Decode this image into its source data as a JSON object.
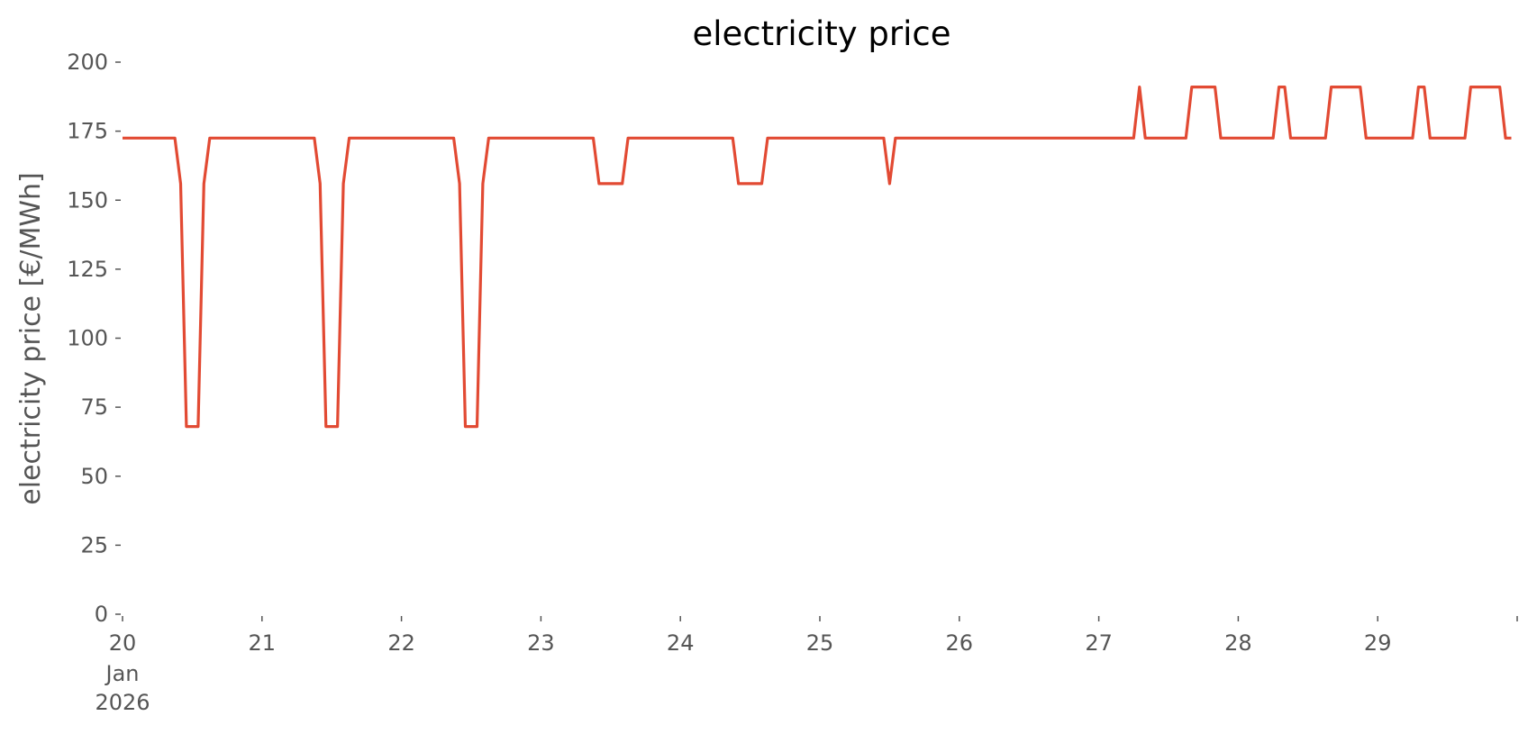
{
  "chart_data": {
    "type": "line",
    "title": "electricity price",
    "xlabel": "",
    "ylabel": "electricity price [€/MWh]",
    "ylim": [
      0,
      200
    ],
    "xlim": [
      "2026-01-20 00:00",
      "2026-01-29 23:00"
    ],
    "grid": false,
    "legend": "none",
    "y_ticks": [
      0,
      25,
      50,
      75,
      100,
      125,
      150,
      175,
      200
    ],
    "y_tick_labels": [
      "0",
      "25",
      "50",
      "75",
      "100",
      "125",
      "150",
      "175",
      "200"
    ],
    "x_ticks": [
      "2026-01-20",
      "2026-01-21",
      "2026-01-22",
      "2026-01-23",
      "2026-01-24",
      "2026-01-25",
      "2026-01-26",
      "2026-01-27",
      "2026-01-28",
      "2026-01-29",
      "2026-01-30"
    ],
    "x_tick_labels": [
      "20",
      "21",
      "22",
      "23",
      "24",
      "25",
      "26",
      "27",
      "28",
      "29",
      ""
    ],
    "x_tick_sublabel": [
      "Jan",
      "2026"
    ],
    "series": [
      {
        "color": "#E24A33",
        "x": [
          "2026-01-20 00:00",
          "2026-01-20 09:00",
          "2026-01-20 10:00",
          "2026-01-20 11:00",
          "2026-01-20 13:00",
          "2026-01-20 14:00",
          "2026-01-20 15:00",
          "2026-01-21 09:00",
          "2026-01-21 10:00",
          "2026-01-21 11:00",
          "2026-01-21 13:00",
          "2026-01-21 14:00",
          "2026-01-21 15:00",
          "2026-01-22 09:00",
          "2026-01-22 10:00",
          "2026-01-22 11:00",
          "2026-01-22 13:00",
          "2026-01-22 14:00",
          "2026-01-22 15:00",
          "2026-01-23 09:00",
          "2026-01-23 10:00",
          "2026-01-23 14:00",
          "2026-01-23 15:00",
          "2026-01-24 09:00",
          "2026-01-24 10:00",
          "2026-01-24 14:00",
          "2026-01-24 15:00",
          "2026-01-25 11:00",
          "2026-01-25 12:00",
          "2026-01-25 13:00",
          "2026-01-27 06:00",
          "2026-01-27 07:00",
          "2026-01-27 08:00",
          "2026-01-27 15:00",
          "2026-01-27 16:00",
          "2026-01-27 20:00",
          "2026-01-27 21:00",
          "2026-01-28 06:00",
          "2026-01-28 07:00",
          "2026-01-28 08:00",
          "2026-01-28 09:00",
          "2026-01-28 15:00",
          "2026-01-28 16:00",
          "2026-01-28 21:00",
          "2026-01-28 22:00",
          "2026-01-29 06:00",
          "2026-01-29 07:00",
          "2026-01-29 08:00",
          "2026-01-29 09:00",
          "2026-01-29 15:00",
          "2026-01-29 16:00",
          "2026-01-29 21:00",
          "2026-01-29 22:00",
          "2026-01-29 23:00"
        ],
        "y": [
          172.5,
          172.5,
          156,
          68,
          68,
          156,
          172.5,
          172.5,
          156,
          68,
          68,
          156,
          172.5,
          172.5,
          156,
          68,
          68,
          156,
          172.5,
          172.5,
          156,
          156,
          172.5,
          172.5,
          156,
          156,
          172.5,
          172.5,
          156,
          172.5,
          172.5,
          191,
          172.5,
          172.5,
          191,
          191,
          172.5,
          172.5,
          191,
          191,
          172.5,
          172.5,
          191,
          191,
          172.5,
          172.5,
          191,
          191,
          172.5,
          172.5,
          191,
          191,
          172.5,
          172.5
        ]
      }
    ]
  }
}
